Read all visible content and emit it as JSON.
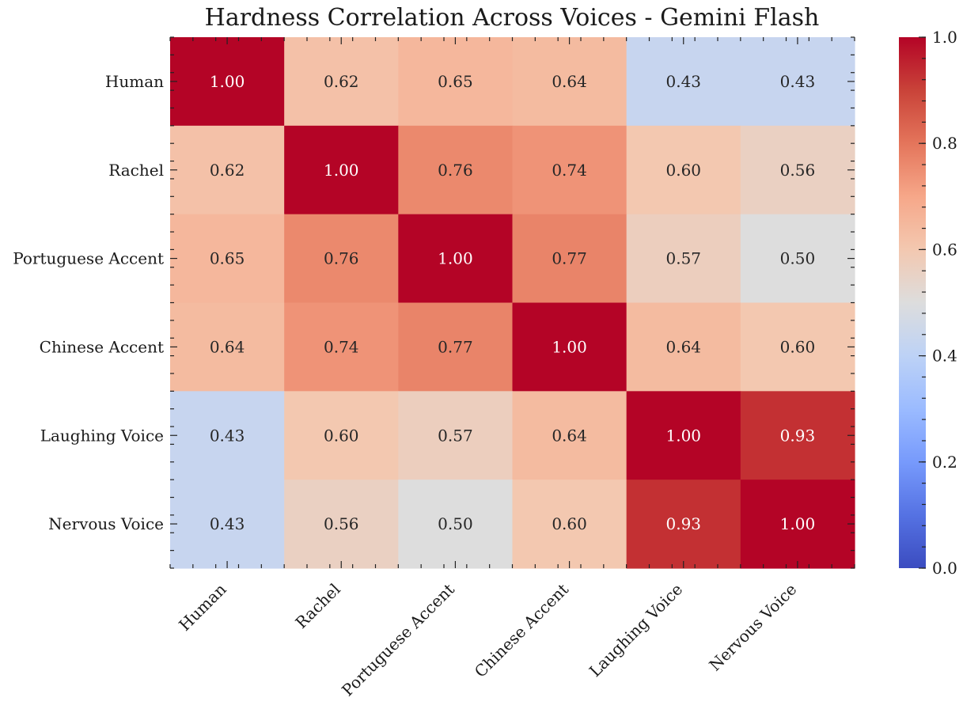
{
  "chart_data": {
    "type": "heatmap",
    "title": "Hardness Correlation Across Voices - Gemini Flash",
    "xlabel": "",
    "ylabel": "",
    "x_categories": [
      "Human",
      "Rachel",
      "Portuguese Accent",
      "Chinese Accent",
      "Laughing Voice",
      "Nervous Voice"
    ],
    "y_categories": [
      "Human",
      "Rachel",
      "Portuguese Accent",
      "Chinese Accent",
      "Laughing Voice",
      "Nervous Voice"
    ],
    "values": [
      [
        1.0,
        0.62,
        0.65,
        0.64,
        0.43,
        0.43
      ],
      [
        0.62,
        1.0,
        0.76,
        0.74,
        0.6,
        0.56
      ],
      [
        0.65,
        0.76,
        1.0,
        0.77,
        0.57,
        0.5
      ],
      [
        0.64,
        0.74,
        0.77,
        1.0,
        0.64,
        0.6
      ],
      [
        0.43,
        0.6,
        0.57,
        0.64,
        1.0,
        0.93
      ],
      [
        0.43,
        0.56,
        0.5,
        0.6,
        0.93,
        1.0
      ]
    ],
    "value_labels": [
      [
        "1.00",
        "0.62",
        "0.65",
        "0.64",
        "0.43",
        "0.43"
      ],
      [
        "0.62",
        "1.00",
        "0.76",
        "0.74",
        "0.60",
        "0.56"
      ],
      [
        "0.65",
        "0.76",
        "1.00",
        "0.77",
        "0.57",
        "0.50"
      ],
      [
        "0.64",
        "0.74",
        "0.77",
        "1.00",
        "0.64",
        "0.60"
      ],
      [
        "0.43",
        "0.60",
        "0.57",
        "0.64",
        "1.00",
        "0.93"
      ],
      [
        "0.43",
        "0.56",
        "0.50",
        "0.60",
        "0.93",
        "1.00"
      ]
    ],
    "colormap": "coolwarm",
    "colorbar": {
      "range": [
        0.0,
        1.0
      ],
      "ticks": [
        0.0,
        0.2,
        0.4,
        0.6,
        0.8,
        1.0
      ],
      "tick_labels": [
        "0.0",
        "0.2",
        "0.4",
        "0.6",
        "0.8",
        "1.0"
      ]
    },
    "legend": "colorbar-right",
    "grid": false
  }
}
